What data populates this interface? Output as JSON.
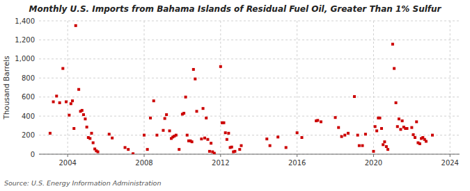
{
  "chart_data": {
    "type": "scatter",
    "title": "Monthly U.S. Imports from Bahama Islands of Residual Fuel Oil, Greater Than 1% Sulfur",
    "ylabel": "Thousand Barrels",
    "annotations": [
      "Source: U.S. Energy Information Administration"
    ],
    "color": "#cc0000",
    "marker": "square",
    "grid": true,
    "xlim": [
      2002.5,
      2024.5
    ],
    "ylim": [
      0,
      1400
    ],
    "xticks": [
      2004,
      2008,
      2012,
      2016,
      2020,
      2024
    ],
    "yticks": [
      0,
      200,
      400,
      600,
      800,
      {
        "value": 1000,
        "label": "1,000"
      },
      {
        "value": 1200,
        "label": "1,200"
      },
      {
        "value": 1400,
        "label": "1,400"
      }
    ],
    "x": [
      2003.08,
      2003.25,
      2003.42,
      2003.58,
      2003.75,
      2003.92,
      2004.08,
      2004.17,
      2004.25,
      2004.33,
      2004.42,
      2004.58,
      2004.67,
      2004.75,
      2004.83,
      2004.92,
      2005.0,
      2005.08,
      2005.17,
      2005.25,
      2005.33,
      2005.42,
      2005.5,
      2005.58,
      2006.17,
      2006.33,
      2007.0,
      2007.17,
      2007.42,
      2008.0,
      2008.17,
      2008.33,
      2008.5,
      2008.67,
      2009.0,
      2009.08,
      2009.17,
      2009.33,
      2009.42,
      2009.5,
      2009.58,
      2009.67,
      2009.83,
      2010.0,
      2010.08,
      2010.17,
      2010.25,
      2010.33,
      2010.42,
      2010.5,
      2010.58,
      2010.67,
      2010.75,
      2011.0,
      2011.08,
      2011.17,
      2011.25,
      2011.33,
      2011.42,
      2011.5,
      2011.58,
      2011.67,
      2012.0,
      2012.08,
      2012.17,
      2012.25,
      2012.33,
      2012.42,
      2012.5,
      2012.58,
      2012.67,
      2012.75,
      2013.0,
      2013.08,
      2014.42,
      2014.58,
      2015.0,
      2015.42,
      2016.0,
      2016.25,
      2017.0,
      2017.08,
      2017.25,
      2018.0,
      2018.17,
      2018.33,
      2018.5,
      2018.67,
      2019.0,
      2019.17,
      2019.25,
      2019.42,
      2019.58,
      2020.0,
      2020.08,
      2020.17,
      2020.25,
      2020.33,
      2020.42,
      2020.5,
      2020.58,
      2020.67,
      2020.75,
      2021.0,
      2021.08,
      2021.17,
      2021.25,
      2021.33,
      2021.42,
      2021.5,
      2021.58,
      2021.67,
      2021.75,
      2022.0,
      2022.08,
      2022.17,
      2022.25,
      2022.33,
      2022.42,
      2022.5,
      2022.58,
      2022.67,
      2022.75,
      2023.08
    ],
    "values": [
      220,
      550,
      610,
      540,
      900,
      550,
      410,
      530,
      560,
      270,
      1350,
      680,
      450,
      460,
      415,
      370,
      285,
      175,
      165,
      220,
      120,
      55,
      35,
      25,
      210,
      170,
      70,
      50,
      5,
      200,
      50,
      380,
      560,
      200,
      250,
      375,
      415,
      245,
      165,
      180,
      190,
      200,
      50,
      420,
      430,
      600,
      200,
      140,
      140,
      130,
      890,
      790,
      450,
      160,
      480,
      170,
      380,
      155,
      30,
      115,
      25,
      10,
      920,
      330,
      330,
      225,
      155,
      220,
      70,
      75,
      25,
      30,
      50,
      90,
      160,
      90,
      180,
      70,
      225,
      175,
      350,
      355,
      340,
      385,
      280,
      185,
      200,
      220,
      605,
      200,
      90,
      90,
      210,
      30,
      290,
      245,
      380,
      380,
      270,
      100,
      130,
      80,
      50,
      1155,
      900,
      540,
      290,
      370,
      260,
      350,
      285,
      270,
      270,
      280,
      205,
      175,
      340,
      120,
      110,
      165,
      175,
      155,
      135,
      200
    ]
  }
}
